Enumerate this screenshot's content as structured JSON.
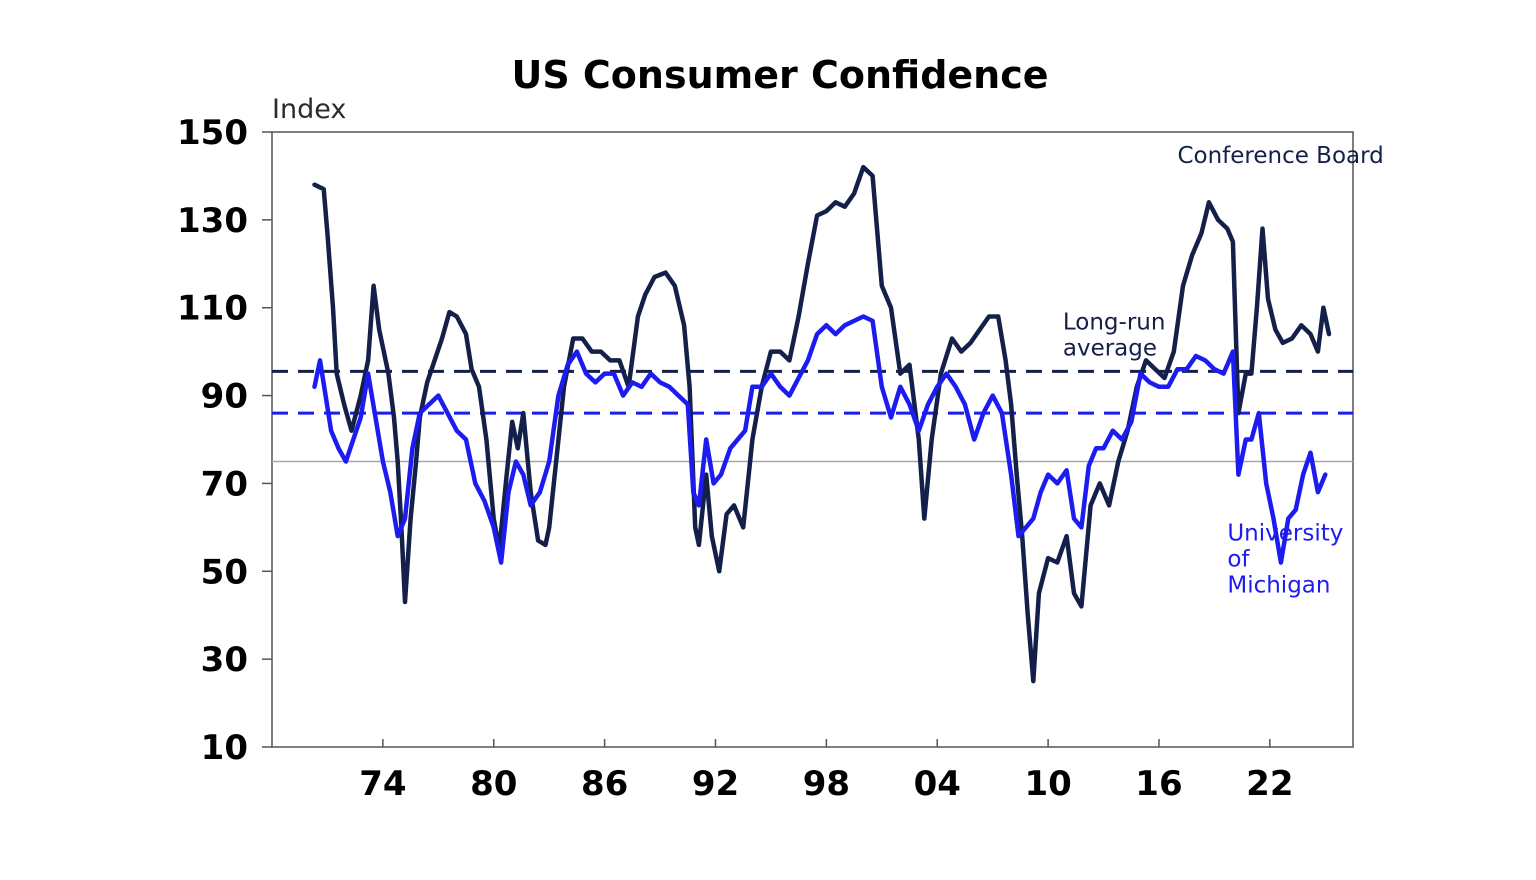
{
  "chart_data": {
    "type": "line",
    "title": "US Consumer Confidence",
    "ylabel": "Index",
    "xlabel": "",
    "xlim": [
      1968.0,
      2026.5
    ],
    "ylim": [
      10,
      150
    ],
    "yticks": [
      10,
      30,
      50,
      70,
      90,
      110,
      130,
      150
    ],
    "xticks": [
      {
        "value": 1974,
        "label": "74"
      },
      {
        "value": 1980,
        "label": "80"
      },
      {
        "value": 1986,
        "label": "86"
      },
      {
        "value": 1992,
        "label": "92"
      },
      {
        "value": 1998,
        "label": "98"
      },
      {
        "value": 2004,
        "label": "04"
      },
      {
        "value": 2010,
        "label": "10"
      },
      {
        "value": 2016,
        "label": "16"
      },
      {
        "value": 2022,
        "label": "22"
      }
    ],
    "grid": false,
    "reference_lines": [
      {
        "series": "Conference Board",
        "kind": "long-run average",
        "value": 95.5,
        "style": "dashed",
        "color": "#14204a"
      },
      {
        "series": "University of Michigan",
        "kind": "long-run average",
        "value": 86,
        "style": "dashed",
        "color": "#1c1cf0"
      },
      {
        "kind": "reference",
        "value": 75,
        "style": "solid",
        "color": "#a6a6a6"
      }
    ],
    "annotations": [
      {
        "text": [
          "Conference Board"
        ],
        "color": "#14204a",
        "x": 2017.0,
        "y": 143
      },
      {
        "text": [
          "Long-run",
          "average"
        ],
        "color": "#14204a",
        "x": 2010.8,
        "y": 105
      },
      {
        "text": [
          "University",
          "of",
          "Michigan"
        ],
        "color": "#1c1cf0",
        "x": 2019.7,
        "y": 57
      }
    ],
    "series": [
      {
        "name": "Conference Board",
        "color": "#14204a",
        "points": [
          [
            1970.3,
            138
          ],
          [
            1970.8,
            137
          ],
          [
            1971.0,
            127
          ],
          [
            1971.3,
            110
          ],
          [
            1971.5,
            95
          ],
          [
            1971.9,
            88
          ],
          [
            1972.3,
            82
          ],
          [
            1972.8,
            90
          ],
          [
            1973.2,
            98
          ],
          [
            1973.5,
            115
          ],
          [
            1973.8,
            105
          ],
          [
            1974.0,
            101
          ],
          [
            1974.3,
            95
          ],
          [
            1974.6,
            85
          ],
          [
            1974.8,
            75
          ],
          [
            1975.0,
            60
          ],
          [
            1975.2,
            43
          ],
          [
            1975.5,
            62
          ],
          [
            1975.8,
            75
          ],
          [
            1976.0,
            85
          ],
          [
            1976.4,
            93
          ],
          [
            1976.8,
            98
          ],
          [
            1977.2,
            103
          ],
          [
            1977.6,
            109
          ],
          [
            1978.0,
            108
          ],
          [
            1978.5,
            104
          ],
          [
            1978.8,
            96
          ],
          [
            1979.2,
            92
          ],
          [
            1979.6,
            80
          ],
          [
            1980.0,
            62
          ],
          [
            1980.3,
            55
          ],
          [
            1980.7,
            72
          ],
          [
            1981.0,
            84
          ],
          [
            1981.3,
            78
          ],
          [
            1981.6,
            86
          ],
          [
            1982.0,
            68
          ],
          [
            1982.4,
            57
          ],
          [
            1982.8,
            56
          ],
          [
            1983.0,
            60
          ],
          [
            1983.4,
            76
          ],
          [
            1983.8,
            92
          ],
          [
            1984.3,
            103
          ],
          [
            1984.8,
            103
          ],
          [
            1985.3,
            100
          ],
          [
            1985.8,
            100
          ],
          [
            1986.3,
            98
          ],
          [
            1986.8,
            98
          ],
          [
            1987.3,
            92
          ],
          [
            1987.8,
            108
          ],
          [
            1988.2,
            113
          ],
          [
            1988.7,
            117
          ],
          [
            1989.3,
            118
          ],
          [
            1989.8,
            115
          ],
          [
            1990.3,
            106
          ],
          [
            1990.6,
            92
          ],
          [
            1990.9,
            60
          ],
          [
            1991.1,
            56
          ],
          [
            1991.5,
            72
          ],
          [
            1991.8,
            58
          ],
          [
            1992.2,
            50
          ],
          [
            1992.6,
            63
          ],
          [
            1993.0,
            65
          ],
          [
            1993.5,
            60
          ],
          [
            1994.0,
            80
          ],
          [
            1994.5,
            92
          ],
          [
            1995.0,
            100
          ],
          [
            1995.5,
            100
          ],
          [
            1996.0,
            98
          ],
          [
            1996.5,
            108
          ],
          [
            1997.0,
            120
          ],
          [
            1997.5,
            131
          ],
          [
            1998.0,
            132
          ],
          [
            1998.5,
            134
          ],
          [
            1999.0,
            133
          ],
          [
            1999.5,
            136
          ],
          [
            2000.0,
            142
          ],
          [
            2000.5,
            140
          ],
          [
            2001.0,
            115
          ],
          [
            2001.5,
            110
          ],
          [
            2002.0,
            95
          ],
          [
            2002.5,
            97
          ],
          [
            2003.0,
            80
          ],
          [
            2003.3,
            62
          ],
          [
            2003.7,
            80
          ],
          [
            2004.2,
            95
          ],
          [
            2004.8,
            103
          ],
          [
            2005.3,
            100
          ],
          [
            2005.8,
            102
          ],
          [
            2006.3,
            105
          ],
          [
            2006.8,
            108
          ],
          [
            2007.3,
            108
          ],
          [
            2007.7,
            98
          ],
          [
            2008.0,
            88
          ],
          [
            2008.3,
            72
          ],
          [
            2008.6,
            58
          ],
          [
            2008.9,
            40
          ],
          [
            2009.2,
            25
          ],
          [
            2009.5,
            45
          ],
          [
            2010.0,
            53
          ],
          [
            2010.5,
            52
          ],
          [
            2011.0,
            58
          ],
          [
            2011.4,
            45
          ],
          [
            2011.8,
            42
          ],
          [
            2012.3,
            65
          ],
          [
            2012.8,
            70
          ],
          [
            2013.3,
            65
          ],
          [
            2013.8,
            75
          ],
          [
            2014.3,
            82
          ],
          [
            2014.8,
            92
          ],
          [
            2015.3,
            98
          ],
          [
            2015.8,
            96
          ],
          [
            2016.3,
            94
          ],
          [
            2016.8,
            100
          ],
          [
            2017.3,
            115
          ],
          [
            2017.8,
            122
          ],
          [
            2018.3,
            127
          ],
          [
            2018.7,
            134
          ],
          [
            2019.2,
            130
          ],
          [
            2019.7,
            128
          ],
          [
            2020.0,
            125
          ],
          [
            2020.3,
            86
          ],
          [
            2020.7,
            95
          ],
          [
            2021.0,
            95
          ],
          [
            2021.3,
            110
          ],
          [
            2021.6,
            128
          ],
          [
            2021.9,
            112
          ],
          [
            2022.3,
            105
          ],
          [
            2022.7,
            102
          ],
          [
            2023.2,
            103
          ],
          [
            2023.7,
            106
          ],
          [
            2024.2,
            104
          ],
          [
            2024.6,
            100
          ],
          [
            2024.9,
            110
          ],
          [
            2025.2,
            104
          ]
        ]
      },
      {
        "name": "University of Michigan",
        "color": "#1c1cf0",
        "points": [
          [
            1970.3,
            92
          ],
          [
            1970.6,
            98
          ],
          [
            1970.9,
            90
          ],
          [
            1971.2,
            82
          ],
          [
            1971.6,
            78
          ],
          [
            1972.0,
            75
          ],
          [
            1972.4,
            80
          ],
          [
            1972.8,
            85
          ],
          [
            1973.2,
            95
          ],
          [
            1973.6,
            85
          ],
          [
            1974.0,
            75
          ],
          [
            1974.4,
            68
          ],
          [
            1974.8,
            58
          ],
          [
            1975.2,
            62
          ],
          [
            1975.6,
            78
          ],
          [
            1976.0,
            86
          ],
          [
            1976.5,
            88
          ],
          [
            1977.0,
            90
          ],
          [
            1977.5,
            86
          ],
          [
            1978.0,
            82
          ],
          [
            1978.5,
            80
          ],
          [
            1979.0,
            70
          ],
          [
            1979.5,
            66
          ],
          [
            1980.0,
            60
          ],
          [
            1980.4,
            52
          ],
          [
            1980.8,
            68
          ],
          [
            1981.2,
            75
          ],
          [
            1981.6,
            72
          ],
          [
            1982.0,
            65
          ],
          [
            1982.5,
            68
          ],
          [
            1983.0,
            75
          ],
          [
            1983.5,
            90
          ],
          [
            1984.0,
            97
          ],
          [
            1984.5,
            100
          ],
          [
            1985.0,
            95
          ],
          [
            1985.5,
            93
          ],
          [
            1986.0,
            95
          ],
          [
            1986.5,
            95
          ],
          [
            1987.0,
            90
          ],
          [
            1987.5,
            93
          ],
          [
            1988.0,
            92
          ],
          [
            1988.5,
            95
          ],
          [
            1989.0,
            93
          ],
          [
            1989.5,
            92
          ],
          [
            1990.0,
            90
          ],
          [
            1990.5,
            88
          ],
          [
            1990.8,
            68
          ],
          [
            1991.1,
            65
          ],
          [
            1991.5,
            80
          ],
          [
            1991.9,
            70
          ],
          [
            1992.3,
            72
          ],
          [
            1992.8,
            78
          ],
          [
            1993.2,
            80
          ],
          [
            1993.6,
            82
          ],
          [
            1994.0,
            92
          ],
          [
            1994.5,
            92
          ],
          [
            1995.0,
            95
          ],
          [
            1995.5,
            92
          ],
          [
            1996.0,
            90
          ],
          [
            1996.5,
            94
          ],
          [
            1997.0,
            98
          ],
          [
            1997.5,
            104
          ],
          [
            1998.0,
            106
          ],
          [
            1998.5,
            104
          ],
          [
            1999.0,
            106
          ],
          [
            1999.5,
            107
          ],
          [
            2000.0,
            108
          ],
          [
            2000.5,
            107
          ],
          [
            2001.0,
            92
          ],
          [
            2001.5,
            85
          ],
          [
            2002.0,
            92
          ],
          [
            2002.5,
            88
          ],
          [
            2003.0,
            82
          ],
          [
            2003.5,
            88
          ],
          [
            2004.0,
            92
          ],
          [
            2004.5,
            95
          ],
          [
            2005.0,
            92
          ],
          [
            2005.5,
            88
          ],
          [
            2006.0,
            80
          ],
          [
            2006.5,
            86
          ],
          [
            2007.0,
            90
          ],
          [
            2007.5,
            86
          ],
          [
            2008.0,
            72
          ],
          [
            2008.4,
            58
          ],
          [
            2008.8,
            60
          ],
          [
            2009.2,
            62
          ],
          [
            2009.6,
            68
          ],
          [
            2010.0,
            72
          ],
          [
            2010.5,
            70
          ],
          [
            2011.0,
            73
          ],
          [
            2011.4,
            62
          ],
          [
            2011.8,
            60
          ],
          [
            2012.2,
            74
          ],
          [
            2012.6,
            78
          ],
          [
            2013.0,
            78
          ],
          [
            2013.5,
            82
          ],
          [
            2014.0,
            80
          ],
          [
            2014.5,
            84
          ],
          [
            2015.0,
            95
          ],
          [
            2015.5,
            93
          ],
          [
            2016.0,
            92
          ],
          [
            2016.5,
            92
          ],
          [
            2017.0,
            96
          ],
          [
            2017.5,
            96
          ],
          [
            2018.0,
            99
          ],
          [
            2018.5,
            98
          ],
          [
            2019.0,
            96
          ],
          [
            2019.5,
            95
          ],
          [
            2020.0,
            100
          ],
          [
            2020.3,
            72
          ],
          [
            2020.7,
            80
          ],
          [
            2021.0,
            80
          ],
          [
            2021.4,
            86
          ],
          [
            2021.8,
            70
          ],
          [
            2022.2,
            62
          ],
          [
            2022.6,
            52
          ],
          [
            2023.0,
            62
          ],
          [
            2023.4,
            64
          ],
          [
            2023.8,
            72
          ],
          [
            2024.2,
            77
          ],
          [
            2024.6,
            68
          ],
          [
            2025.0,
            72
          ]
        ]
      }
    ]
  }
}
